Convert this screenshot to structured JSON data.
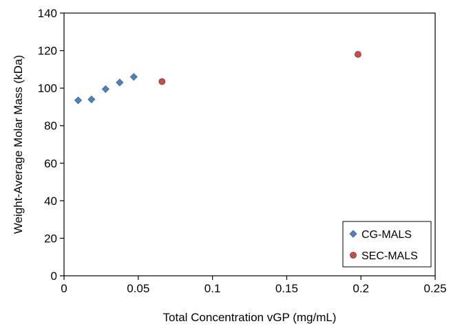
{
  "chart_data": {
    "type": "scatter",
    "xlabel": "Total Concentration vGP (mg/mL)",
    "ylabel": "Weight-Average Molar Mass (kDa)",
    "xlim": [
      0,
      0.25
    ],
    "ylim": [
      0,
      140
    ],
    "x_ticks": [
      "0",
      "0.05",
      "0.1",
      "0.15",
      "0.2",
      "0.25"
    ],
    "y_ticks": [
      "0",
      "20",
      "40",
      "60",
      "80",
      "100",
      "120",
      "140"
    ],
    "grid": false,
    "legend_position": "bottom-right",
    "series": [
      {
        "name": "CG-MALS",
        "marker": "diamond",
        "color": "#4f81bd",
        "points": [
          {
            "x": 0.0095,
            "y": 93.5
          },
          {
            "x": 0.0185,
            "y": 94
          },
          {
            "x": 0.028,
            "y": 99.5
          },
          {
            "x": 0.0375,
            "y": 103
          },
          {
            "x": 0.047,
            "y": 106
          }
        ]
      },
      {
        "name": "SEC-MALS",
        "marker": "circle",
        "color": "#c0504d",
        "points": [
          {
            "x": 0.066,
            "y": 103.5
          },
          {
            "x": 0.198,
            "y": 118
          }
        ]
      }
    ]
  }
}
